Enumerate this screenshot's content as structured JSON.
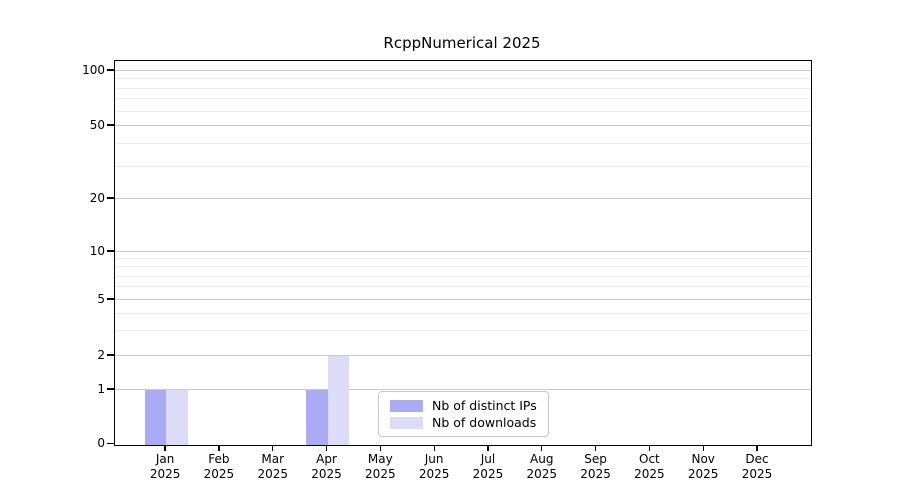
{
  "title": "RcppNumerical 2025",
  "chart_data": {
    "type": "bar",
    "title": "RcppNumerical 2025",
    "categories": [
      "Jan",
      "Feb",
      "Mar",
      "Apr",
      "May",
      "Jun",
      "Jul",
      "Aug",
      "Sep",
      "Oct",
      "Nov",
      "Dec"
    ],
    "year_label": "2025",
    "series": [
      {
        "name": "Nb of distinct IPs",
        "color": "#aaaaf5",
        "values": [
          1,
          0,
          0,
          1,
          0,
          0,
          0,
          0,
          0,
          0,
          0,
          0
        ]
      },
      {
        "name": "Nb of downloads",
        "color": "#dcdcf8",
        "values": [
          1,
          0,
          0,
          2,
          0,
          0,
          0,
          0,
          0,
          0,
          0,
          0
        ]
      }
    ],
    "y_axis": {
      "scale": "log-like",
      "major_ticks": [
        0,
        1,
        2,
        5,
        10,
        20,
        50,
        100
      ],
      "minor_ticks": [
        3,
        4,
        6,
        7,
        8,
        9,
        30,
        40,
        60,
        70,
        80,
        90
      ],
      "ylim": [
        0,
        110
      ]
    },
    "x_axis": {
      "tick_style": "month over year, centered under each bar pair"
    },
    "grid": "horizontal major and minor gridlines",
    "legend": {
      "position": "inside bottom, center-right",
      "entries": [
        "Nb of distinct IPs",
        "Nb of downloads"
      ]
    },
    "colors": {
      "distinct_ips": "#aaaaf5",
      "downloads": "#dcdcf8",
      "grid_major": "#c9c9c9",
      "grid_minor": "#ececec"
    }
  }
}
